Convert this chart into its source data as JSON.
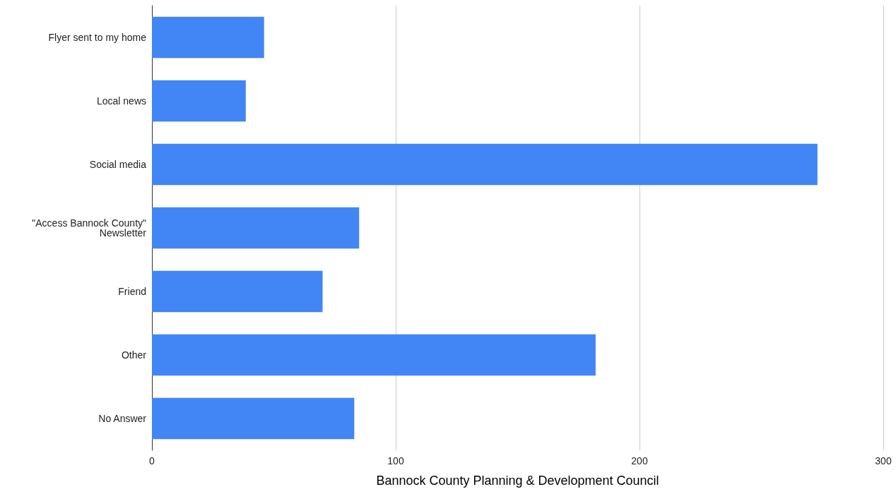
{
  "chart_data": {
    "type": "bar",
    "orientation": "horizontal",
    "xlabel": "Bannock County Planning & Development Council",
    "categories": [
      "Flyer sent to my home",
      "Local news",
      "Social media",
      "\"Access Bannock County\"\nNewsletter",
      "Friend",
      "Other",
      "No Answer"
    ],
    "values": [
      46,
      38.5,
      273,
      85,
      70,
      182,
      83
    ],
    "color": "#4285f4",
    "xlim": [
      0,
      300
    ],
    "xticks": [
      0,
      100,
      200,
      300
    ],
    "grid": "x"
  }
}
